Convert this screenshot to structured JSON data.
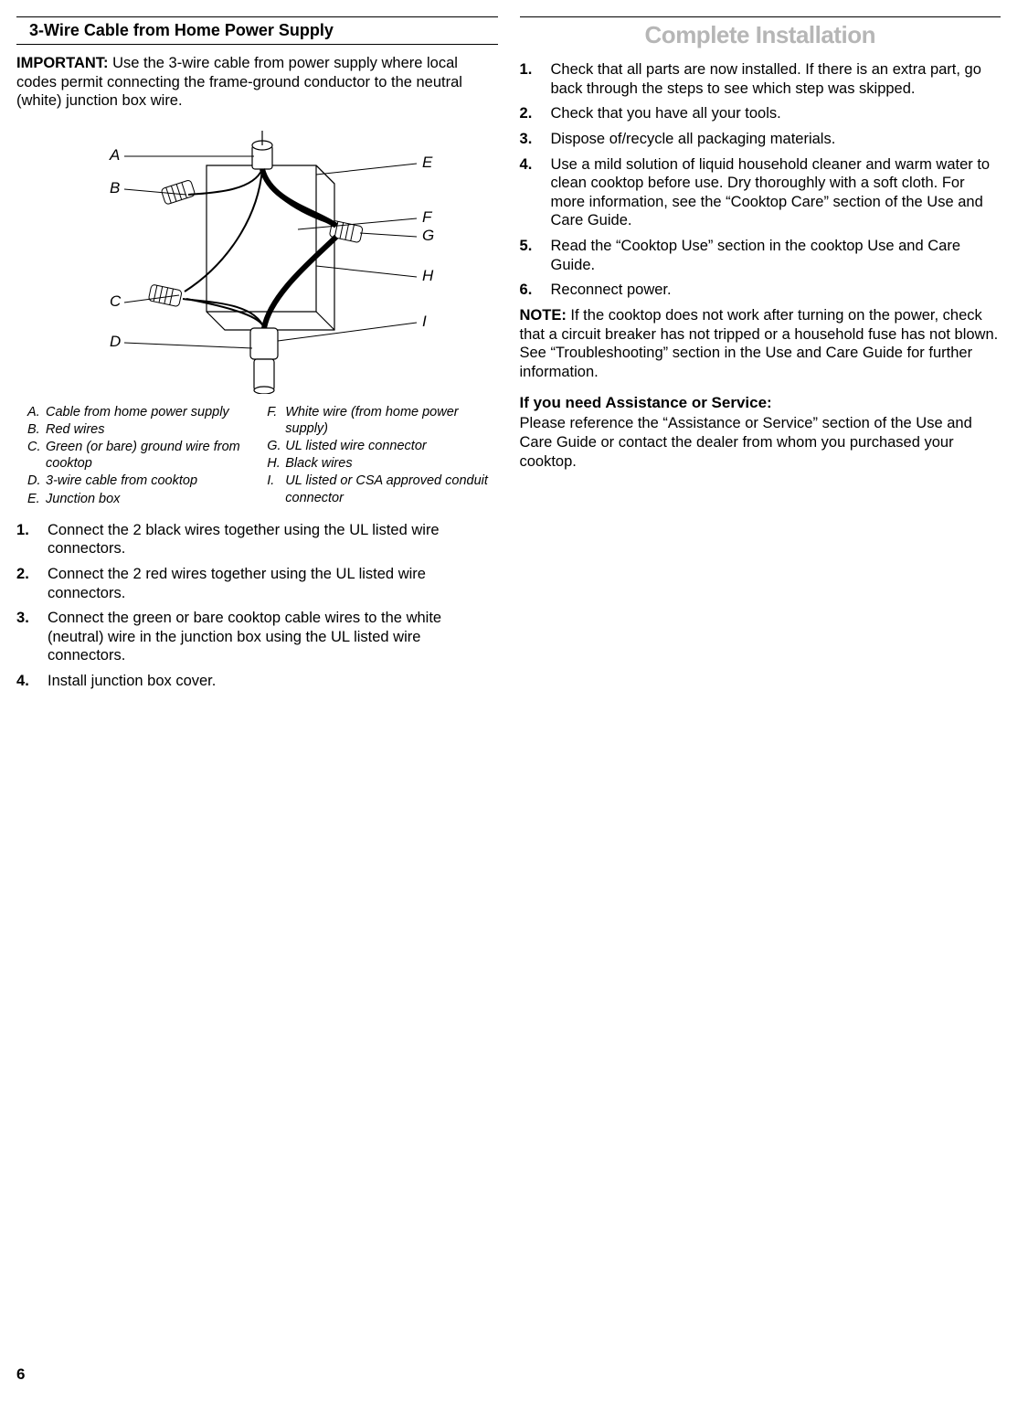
{
  "pageNumber": "6",
  "left": {
    "header": "3-Wire Cable from Home Power Supply",
    "importantLead": "IMPORTANT:",
    "importantText": " Use the 3-wire cable from power supply where local codes permit connecting the frame-ground conductor to the neutral (white) junction box wire.",
    "diagram": {
      "labels": {
        "A": "A",
        "B": "B",
        "C": "C",
        "D": "D",
        "E": "E",
        "F": "F",
        "G": "G",
        "H": "H",
        "I": "I"
      },
      "stroke": "#000000",
      "labelFont": 17
    },
    "legendLeft": [
      {
        "k": "A.",
        "t": "Cable from home power supply"
      },
      {
        "k": "B.",
        "t": "Red wires"
      },
      {
        "k": "C.",
        "t": "Green (or bare) ground wire from cooktop"
      },
      {
        "k": "D.",
        "t": "3-wire cable from cooktop"
      },
      {
        "k": "E.",
        "t": "Junction box"
      }
    ],
    "legendRight": [
      {
        "k": "F.",
        "t": "White wire (from home power supply)"
      },
      {
        "k": "G.",
        "t": "UL listed wire connector"
      },
      {
        "k": "H.",
        "t": "Black wires"
      },
      {
        "k": "I.",
        "t": "UL listed or CSA approved conduit connector"
      }
    ],
    "steps": [
      "Connect the 2 black wires together using the UL listed wire connectors.",
      "Connect the 2 red wires together using the UL listed wire connectors.",
      "Connect the green or bare cooktop cable wires to the white (neutral) wire in the junction box using the UL listed wire connectors.",
      "Install junction box cover."
    ]
  },
  "right": {
    "header": "Complete Installation",
    "steps": [
      "Check that all parts are now installed. If there is an extra part, go back through the steps to see which step was skipped.",
      "Check that you have all your tools.",
      "Dispose of/recycle all packaging materials.",
      "Use a mild solution of liquid household cleaner and warm water to clean cooktop before use. Dry thoroughly with a soft cloth. For more information, see the “Cooktop Care” section of the Use and Care Guide.",
      "Read the “Cooktop Use” section in the cooktop Use and Care Guide.",
      "Reconnect power."
    ],
    "noteLead": "NOTE:",
    "noteText": " If the cooktop does not work after turning on the power, check that a circuit breaker has not tripped or a household fuse has not blown. See “Troubleshooting” section in the Use and Care Guide for further information.",
    "assistHeader": "If you need Assistance or Service:",
    "assistText": "Please reference the “Assistance or Service” section of the Use and Care Guide or contact the dealer from whom you purchased your cooktop."
  }
}
